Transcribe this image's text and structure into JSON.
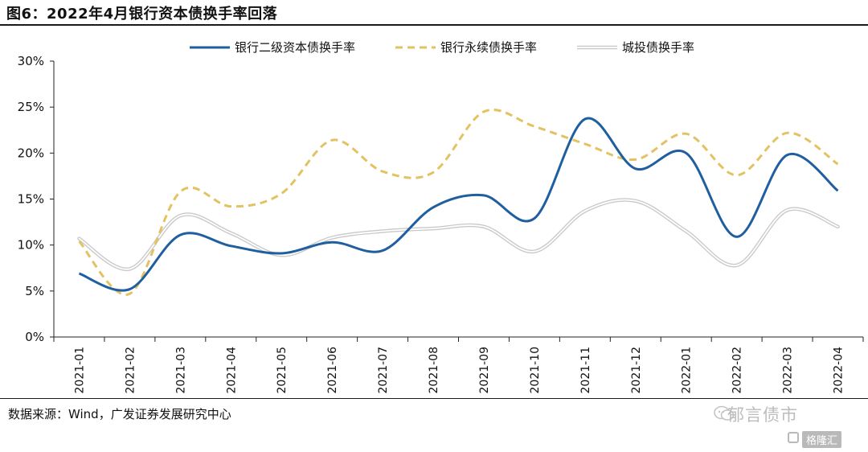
{
  "figure": {
    "title": "图6：2022年4月银行资本债换手率回落",
    "source": "数据来源：Wind，广发证券发展研究中心",
    "watermark": "郁言债市",
    "watermark_sub": "格隆汇"
  },
  "chart_data": {
    "type": "line",
    "title": "",
    "xlabel": "",
    "ylabel": "",
    "categories": [
      "2021-01",
      "2021-02",
      "2021-03",
      "2021-04",
      "2021-05",
      "2021-06",
      "2021-07",
      "2021-08",
      "2021-09",
      "2021-10",
      "2021-11",
      "2021-12",
      "2022-01",
      "2022-02",
      "2022-03",
      "2022-04"
    ],
    "ylim": [
      0,
      30
    ],
    "yticks": [
      0,
      5,
      10,
      15,
      20,
      25,
      30
    ],
    "ytick_labels": [
      "0%",
      "5%",
      "10%",
      "15%",
      "20%",
      "25%",
      "30%"
    ],
    "grid": false,
    "legend_position": "top",
    "series": [
      {
        "name": "银行二级资本债换手率",
        "color": "#1f5fa0",
        "style": "solid",
        "values": [
          6.9,
          5.2,
          11.1,
          9.9,
          9.1,
          10.3,
          9.4,
          14.1,
          15.4,
          12.9,
          23.7,
          18.3,
          20.0,
          10.9,
          19.8,
          15.9
        ]
      },
      {
        "name": "银行永续债换手率",
        "color": "#e2c263",
        "style": "dashed",
        "values": [
          10.4,
          4.7,
          15.8,
          14.2,
          15.6,
          21.4,
          18.0,
          17.9,
          24.5,
          22.9,
          21.0,
          19.3,
          22.1,
          17.6,
          22.2,
          18.8
        ]
      },
      {
        "name": "城投债换手率",
        "color": "#c9c9c9",
        "style": "double",
        "values": [
          10.7,
          7.4,
          13.2,
          11.3,
          8.9,
          10.8,
          11.5,
          11.8,
          12.0,
          9.3,
          13.7,
          14.8,
          11.5,
          7.8,
          13.8,
          12.0
        ]
      }
    ]
  }
}
